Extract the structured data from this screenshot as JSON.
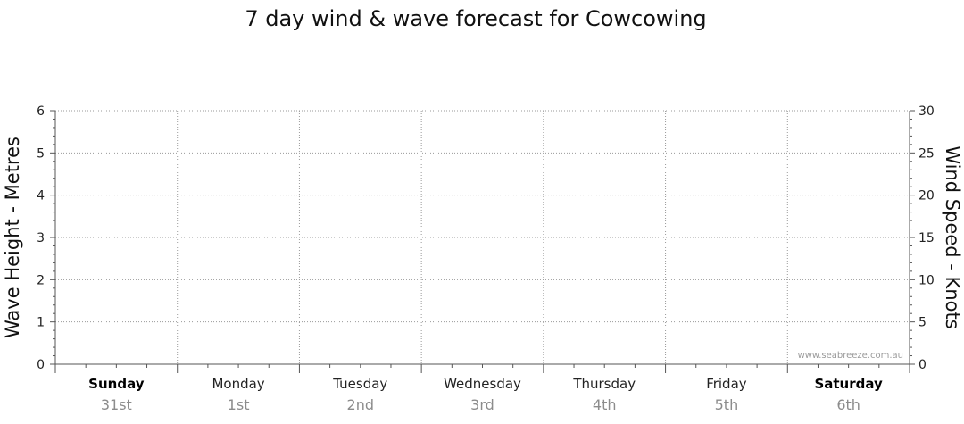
{
  "chart_data": {
    "type": "line",
    "title": "7 day wind & wave forecast for Cowcowing",
    "ylabel_left": "Wave Height - Metres",
    "ylabel_right": "Wind Speed - Knots",
    "ylim_left": [
      0,
      6
    ],
    "yticks_left": [
      0,
      1,
      2,
      3,
      4,
      5,
      6
    ],
    "ylim_right": [
      0,
      30
    ],
    "yticks_right": [
      0,
      5,
      10,
      15,
      20,
      25,
      30
    ],
    "grid": true,
    "days": [
      {
        "day": "Sunday",
        "date": "31st",
        "bold": true
      },
      {
        "day": "Monday",
        "date": "1st",
        "bold": false
      },
      {
        "day": "Tuesday",
        "date": "2nd",
        "bold": false
      },
      {
        "day": "Wednesday",
        "date": "3rd",
        "bold": false
      },
      {
        "day": "Thursday",
        "date": "4th",
        "bold": false
      },
      {
        "day": "Friday",
        "date": "5th",
        "bold": false
      },
      {
        "day": "Saturday",
        "date": "6th",
        "bold": true
      }
    ],
    "series": []
  },
  "watermark": "www.seabreeze.com.au",
  "colors": {
    "grid": "#9a9a9a",
    "axis": "#555555",
    "date_text": "#8c8c8c"
  }
}
